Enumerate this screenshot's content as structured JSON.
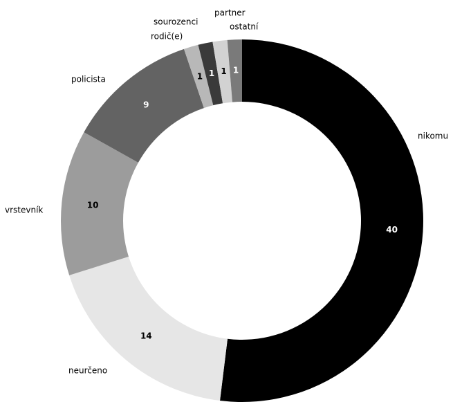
{
  "chart_data": {
    "type": "pie",
    "donut": true,
    "title": "",
    "legend": "none",
    "categories": [
      "nikomu",
      "neurčeno",
      "vrstevník",
      "policista",
      "rodič(e)",
      "sourozenci",
      "partner",
      "ostatní"
    ],
    "values": [
      40,
      14,
      10,
      9,
      1,
      1,
      1,
      1
    ],
    "colors": [
      "#000000",
      "#e6e6e6",
      "#9c9c9c",
      "#636363",
      "#b8b8b8",
      "#3a3a3a",
      "#d2d2d2",
      "#7a7a7a"
    ],
    "label_colors": [
      "#ffffff",
      "#000000",
      "#000000",
      "#ffffff",
      "#000000",
      "#ffffff",
      "#000000",
      "#ffffff"
    ]
  }
}
